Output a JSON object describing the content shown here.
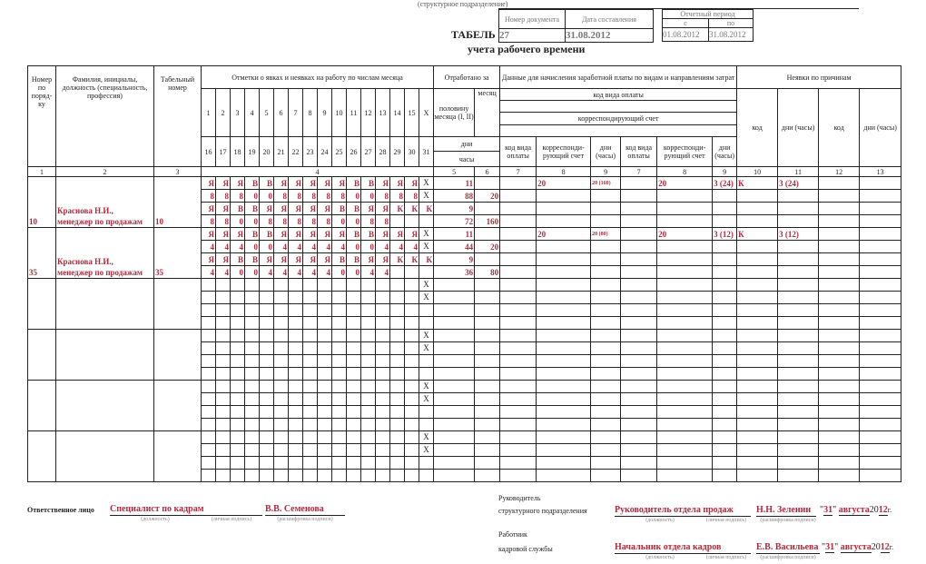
{
  "top": {
    "unit_caption": "(структурное подразделение)",
    "title": "ТАБЕЛЬ",
    "subtitle": "учета рабочего времени",
    "doc_number_label": "Номер документа",
    "doc_date_label": "Дата составления",
    "doc_number": "27",
    "doc_date": "31.08.2012",
    "period_label": "Отчетный период",
    "period_from_label": "с",
    "period_to_label": "по",
    "period_from": "01.08.2012",
    "period_to": "31.08.2012"
  },
  "headers": {
    "num": "Номер по поряд-ку",
    "fio": "Фамилия, инициалы, должность (специальность, профессия)",
    "tab": "Табельный номер",
    "marks": "Отметки о явках и неявках на работу по числам месяца",
    "worked": "Отработано за",
    "pay": "Данные для начисления заработной платы по видам и направлениям затрат",
    "absent": "Неявки по причинам",
    "pay_code": "код вида оплаты",
    "corr_account": "корреспондирующий счет",
    "half_month": "половину месяца (I, II)",
    "month": "месяц",
    "days": "дни",
    "hours": "часы",
    "pay_cols": [
      "код вида оплаты",
      "корреспонди-рующий счет",
      "дни (часы)",
      "код вида оплаты",
      "корреспонди-рующий счет",
      "дни (часы)"
    ],
    "absent_cols": [
      "код",
      "дни (часы)",
      "код",
      "дни (часы)"
    ],
    "days_first": [
      "1",
      "2",
      "3",
      "4",
      "5",
      "6",
      "7",
      "8",
      "9",
      "10",
      "11",
      "12",
      "13",
      "14",
      "15",
      "X"
    ],
    "days_second": [
      "16",
      "17",
      "18",
      "19",
      "20",
      "21",
      "22",
      "23",
      "24",
      "25",
      "26",
      "27",
      "28",
      "29",
      "30",
      "31"
    ],
    "col_numbers": [
      "1",
      "2",
      "3",
      "4",
      "5",
      "6",
      "7",
      "8",
      "9",
      "7",
      "8",
      "9",
      "10",
      "11",
      "12",
      "13"
    ]
  },
  "x_mark": "X",
  "employees": [
    {
      "num": "10",
      "name": "Краснова Н.И., менеджер по продажам",
      "tab": "10",
      "rows": [
        {
          "marks": [
            "Я",
            "Я",
            "Я",
            "В",
            "В",
            "Я",
            "Я",
            "Я",
            "Я",
            "Я",
            "В",
            "В",
            "Я",
            "Я",
            "Я",
            "X"
          ],
          "worked": "11",
          "month": ""
        },
        {
          "marks": [
            "8",
            "8",
            "8",
            "0",
            "0",
            "8",
            "8",
            "8",
            "8",
            "8",
            "0",
            "0",
            "8",
            "8",
            "8",
            "X"
          ],
          "worked": "88",
          "month": "20"
        },
        {
          "marks": [
            "Я",
            "Я",
            "В",
            "В",
            "Я",
            "Я",
            "Я",
            "Я",
            "Я",
            "В",
            "В",
            "Я",
            "Я",
            "К",
            "К",
            "К"
          ],
          "worked": "9",
          "month": ""
        },
        {
          "marks": [
            "8",
            "8",
            "0",
            "0",
            "8",
            "8",
            "8",
            "8",
            "8",
            "0",
            "0",
            "8",
            "8",
            "",
            "",
            ""
          ],
          "worked": "72",
          "month": "160"
        }
      ],
      "pay": [
        "",
        "20",
        "20 (160)",
        "",
        "20",
        "3 (24)"
      ],
      "absence": [
        "К",
        "3 (24)",
        "",
        ""
      ]
    },
    {
      "num": "35",
      "name": "Краснова Н.И., менеджер по продажам",
      "tab": "35",
      "rows": [
        {
          "marks": [
            "Я",
            "Я",
            "Я",
            "В",
            "В",
            "Я",
            "Я",
            "Я",
            "Я",
            "Я",
            "В",
            "В",
            "Я",
            "Я",
            "Я",
            "X"
          ],
          "worked": "11",
          "month": ""
        },
        {
          "marks": [
            "4",
            "4",
            "4",
            "0",
            "0",
            "4",
            "4",
            "4",
            "4",
            "4",
            "0",
            "0",
            "4",
            "4",
            "4",
            "X"
          ],
          "worked": "44",
          "month": "20"
        },
        {
          "marks": [
            "Я",
            "Я",
            "В",
            "В",
            "Я",
            "Я",
            "Я",
            "Я",
            "Я",
            "В",
            "В",
            "Я",
            "Я",
            "К",
            "К",
            "К"
          ],
          "worked": "9",
          "month": ""
        },
        {
          "marks": [
            "4",
            "4",
            "0",
            "0",
            "4",
            "4",
            "4",
            "4",
            "4",
            "0",
            "0",
            "4",
            "4",
            "",
            "",
            ""
          ],
          "worked": "36",
          "month": "80"
        }
      ],
      "pay": [
        "",
        "20",
        "20 (80)",
        "",
        "20",
        "3 (12)"
      ],
      "absence": [
        "К",
        "3 (12)",
        "",
        ""
      ]
    }
  ],
  "footer": {
    "responsible_label": "Ответственное лицо",
    "responsible_position": "Специалист по кадрам",
    "responsible_name": "В.В. Семенова",
    "cap_position": "(должность)",
    "cap_signature": "(личная подпись)",
    "cap_decode": "(расшифровка подписи)",
    "head_label_1": "Руководитель",
    "head_label_2": "структурного подразделения",
    "head_position": "Руководитель отдела продаж",
    "head_name": "Н.Н. Зеленин",
    "hr_label_1": "Работник",
    "hr_label_2": "кадровой службы",
    "hr_position": "Начальник отдела кадров",
    "hr_name": "Е.В. Васильева",
    "date_day": "31",
    "date_month": "августа",
    "date_year_prefix": "20",
    "date_year_suffix": "12",
    "date_year_unit": "г."
  }
}
